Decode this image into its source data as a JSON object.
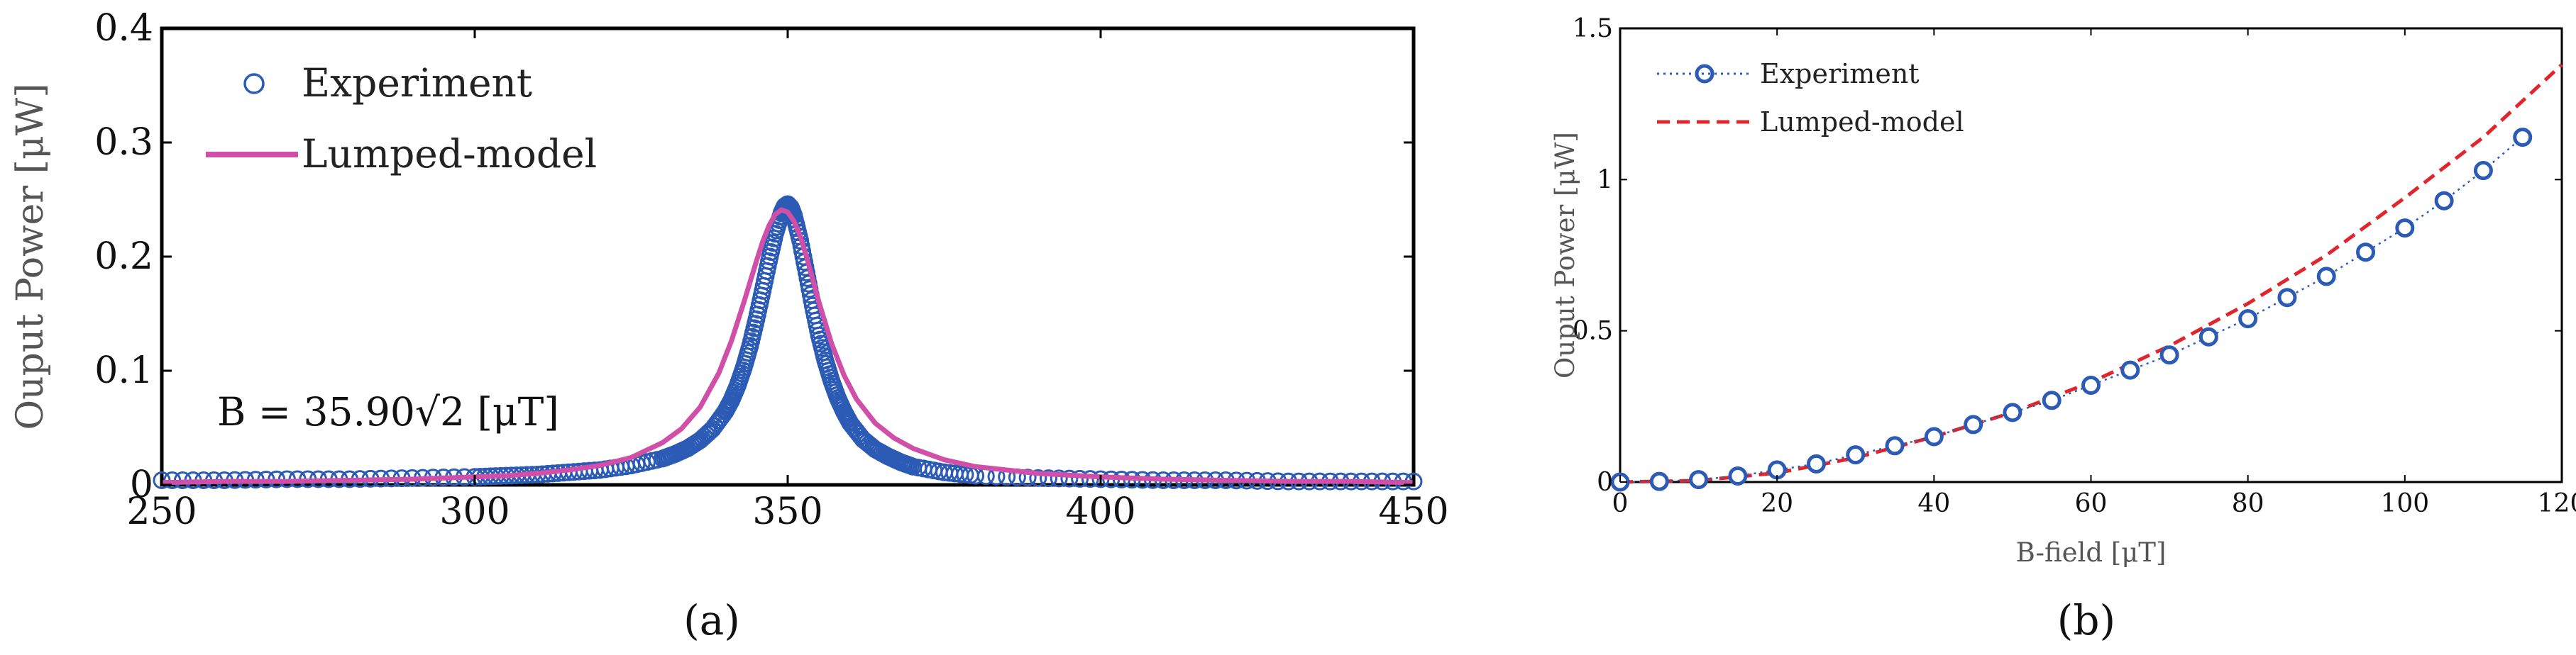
{
  "panels": {
    "a_label": "(a)",
    "b_label": "(b)"
  },
  "chart_data": [
    {
      "type": "line",
      "panel": "a",
      "title": "",
      "xlabel": "",
      "ylabel": "Ouput Power [μW]",
      "xlim": [
        250,
        450
      ],
      "ylim": [
        0,
        0.4
      ],
      "xticks": [
        250,
        300,
        350,
        400,
        450
      ],
      "yticks": [
        0,
        0.1,
        0.2,
        0.3,
        0.4
      ],
      "xtick_labels": [
        "250",
        "300",
        "350",
        "400",
        "450"
      ],
      "ytick_labels": [
        "0",
        "0.1",
        "0.2",
        "0.3",
        "0.4"
      ],
      "grid": false,
      "legend_position": "top-left",
      "annotation": "B = 35.90√2 [μT]",
      "series": [
        {
          "name": "Experiment",
          "style": "markers",
          "marker": "circle-open",
          "color": "#2b5bb5",
          "x": [
            250,
            260,
            270,
            280,
            290,
            300,
            305,
            310,
            315,
            320,
            325,
            330,
            332,
            334,
            336,
            338,
            340,
            341,
            342,
            343,
            344,
            345,
            346,
            347,
            348,
            349,
            349.5,
            350,
            350.5,
            351,
            352,
            353,
            354,
            355,
            356,
            357,
            358,
            359,
            360,
            362,
            364,
            366,
            368,
            370,
            375,
            380,
            390,
            400,
            410,
            420,
            430,
            440,
            450
          ],
          "y": [
            0.004,
            0.004,
            0.005,
            0.005,
            0.006,
            0.007,
            0.008,
            0.009,
            0.011,
            0.013,
            0.017,
            0.023,
            0.027,
            0.032,
            0.039,
            0.049,
            0.064,
            0.074,
            0.087,
            0.103,
            0.122,
            0.145,
            0.17,
            0.196,
            0.22,
            0.238,
            0.244,
            0.246,
            0.243,
            0.236,
            0.214,
            0.186,
            0.157,
            0.131,
            0.109,
            0.091,
            0.076,
            0.064,
            0.054,
            0.04,
            0.031,
            0.025,
            0.02,
            0.016,
            0.011,
            0.008,
            0.006,
            0.005,
            0.004,
            0.004,
            0.003,
            0.003,
            0.003
          ]
        },
        {
          "name": "Lumped-model",
          "style": "line",
          "color": "#d04fa8",
          "x": [
            250,
            260,
            270,
            280,
            290,
            300,
            305,
            310,
            315,
            320,
            325,
            330,
            333,
            336,
            339,
            341,
            343,
            345,
            346,
            347,
            348,
            349,
            350,
            351,
            352,
            353,
            354,
            355,
            357,
            359,
            361,
            364,
            367,
            370,
            375,
            380,
            390,
            400,
            410,
            420,
            430,
            440,
            450
          ],
          "y": [
            0.002,
            0.003,
            0.003,
            0.004,
            0.005,
            0.007,
            0.008,
            0.01,
            0.013,
            0.017,
            0.024,
            0.037,
            0.049,
            0.068,
            0.098,
            0.126,
            0.16,
            0.196,
            0.213,
            0.227,
            0.237,
            0.241,
            0.239,
            0.231,
            0.218,
            0.2,
            0.18,
            0.16,
            0.124,
            0.096,
            0.075,
            0.054,
            0.041,
            0.032,
            0.022,
            0.016,
            0.01,
            0.007,
            0.005,
            0.004,
            0.003,
            0.003,
            0.002
          ]
        }
      ]
    },
    {
      "type": "line",
      "panel": "b",
      "title": "",
      "xlabel": "B-field [μT]",
      "ylabel": "Ouput Power [μW]",
      "xlim": [
        0,
        120
      ],
      "ylim": [
        0,
        1.5
      ],
      "xticks": [
        0,
        20,
        40,
        60,
        80,
        100,
        120
      ],
      "yticks": [
        0,
        0.5,
        1,
        1.5
      ],
      "xtick_labels": [
        "0",
        "20",
        "40",
        "60",
        "80",
        "100",
        "120"
      ],
      "ytick_labels": [
        "0",
        "0.5",
        "1",
        "1.5"
      ],
      "grid": false,
      "legend_position": "top-left",
      "series": [
        {
          "name": "Experiment",
          "style": "markers-dotted",
          "marker": "circle-open",
          "color": "#2b5bb5",
          "x": [
            0,
            5,
            10,
            15,
            20,
            25,
            30,
            35,
            40,
            45,
            50,
            55,
            60,
            65,
            70,
            75,
            80,
            85,
            90,
            95,
            100,
            105,
            110,
            115
          ],
          "y": [
            0.0,
            0.002,
            0.008,
            0.02,
            0.04,
            0.06,
            0.09,
            0.12,
            0.15,
            0.19,
            0.23,
            0.27,
            0.32,
            0.37,
            0.42,
            0.48,
            0.54,
            0.61,
            0.68,
            0.76,
            0.84,
            0.93,
            1.03,
            1.14
          ]
        },
        {
          "name": "Lumped-model",
          "style": "dashed",
          "color": "#e0262c",
          "x": [
            0,
            10,
            20,
            30,
            40,
            50,
            60,
            70,
            80,
            90,
            100,
            110,
            120
          ],
          "y": [
            0.0,
            0.005,
            0.03,
            0.08,
            0.15,
            0.23,
            0.33,
            0.45,
            0.59,
            0.75,
            0.94,
            1.14,
            1.38
          ]
        }
      ]
    }
  ]
}
